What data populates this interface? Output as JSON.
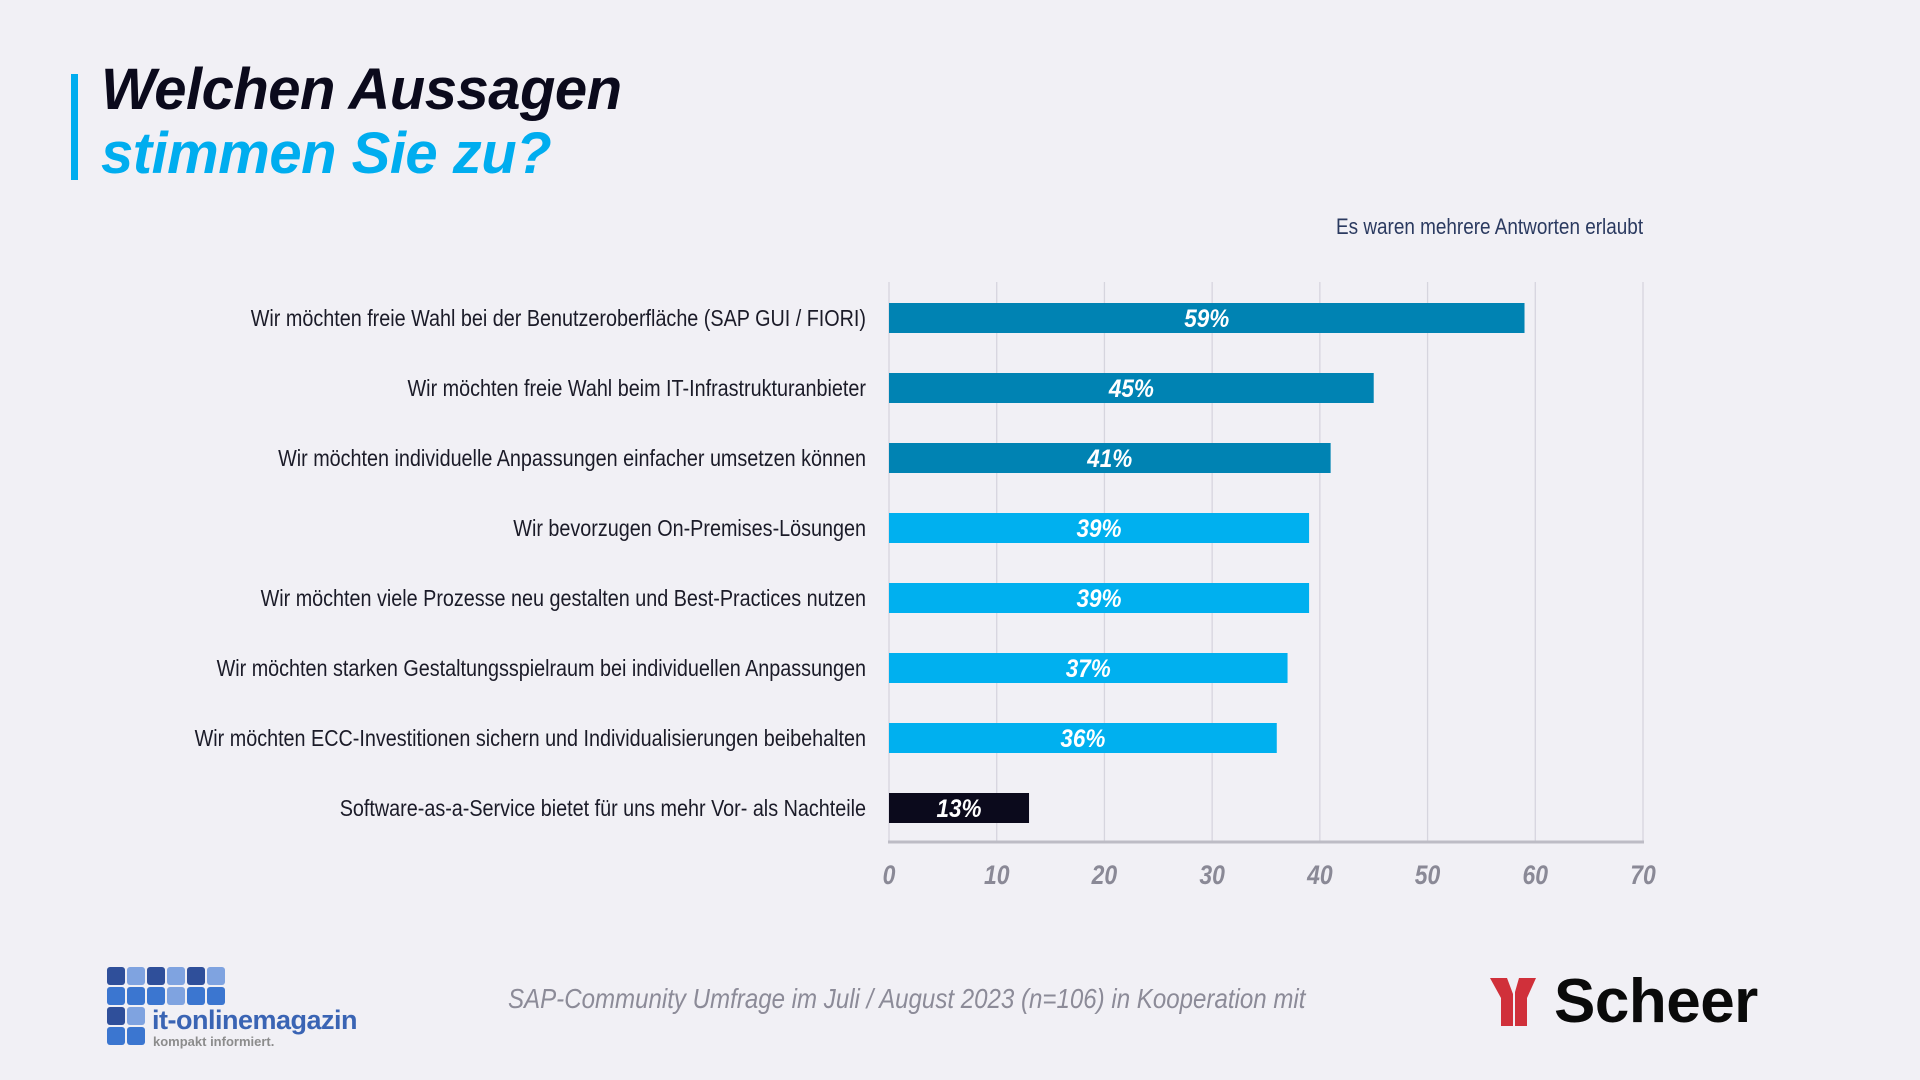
{
  "header": {
    "title_line1": "Welchen Aussagen",
    "title_line2": "stimmen Sie zu?",
    "note": "Es waren mehrere Antworten erlaubt"
  },
  "footer": {
    "source": "SAP-Community Umfrage im Juli / August 2023 (n=106) in Kooperation mit",
    "logo_left": {
      "name": "it-onlinemagazin",
      "claim": "kompakt informiert."
    },
    "logo_right": {
      "name": "Scheer"
    }
  },
  "colors": {
    "accent": "#00ADEF",
    "bar_dark_blue": "#0083B3",
    "bar_light_blue": "#00B0EF",
    "bar_black": "#0B0A1C",
    "scheer_red": "#D0303A"
  },
  "chart_data": {
    "type": "bar",
    "orientation": "horizontal",
    "title": "Welchen Aussagen stimmen Sie zu?",
    "subtitle": "Es waren mehrere Antworten erlaubt",
    "xlabel": "",
    "ylabel": "",
    "xlim": [
      0,
      70
    ],
    "xticks": [
      0,
      10,
      20,
      30,
      40,
      50,
      60,
      70
    ],
    "grid": true,
    "legend": "none",
    "categories": [
      "Wir möchten freie Wahl bei der Benutzeroberfläche (SAP GUI / FIORI)",
      "Wir möchten freie Wahl beim IT-Infrastrukturanbieter",
      "Wir möchten individuelle Anpassungen einfacher umsetzen können",
      "Wir bevorzugen On-Premises-Lösungen",
      "Wir möchten viele Prozesse neu gestalten und Best-Practices nutzen",
      "Wir möchten starken Gestaltungsspielraum bei individuellen Anpassungen",
      "Wir möchten ECC-Investitionen sichern und Individualisierungen beibehalten",
      "Software-as-a-Service bietet für uns mehr Vor- als Nachteile"
    ],
    "values": [
      59,
      45,
      41,
      39,
      39,
      37,
      36,
      13
    ],
    "value_labels": [
      "59%",
      "45%",
      "41%",
      "39%",
      "39%",
      "37%",
      "36%",
      "13%"
    ],
    "bar_colors": [
      "#0083B3",
      "#0083B3",
      "#0083B3",
      "#00B0EF",
      "#00B0EF",
      "#00B0EF",
      "#00B0EF",
      "#0B0A1C"
    ]
  }
}
